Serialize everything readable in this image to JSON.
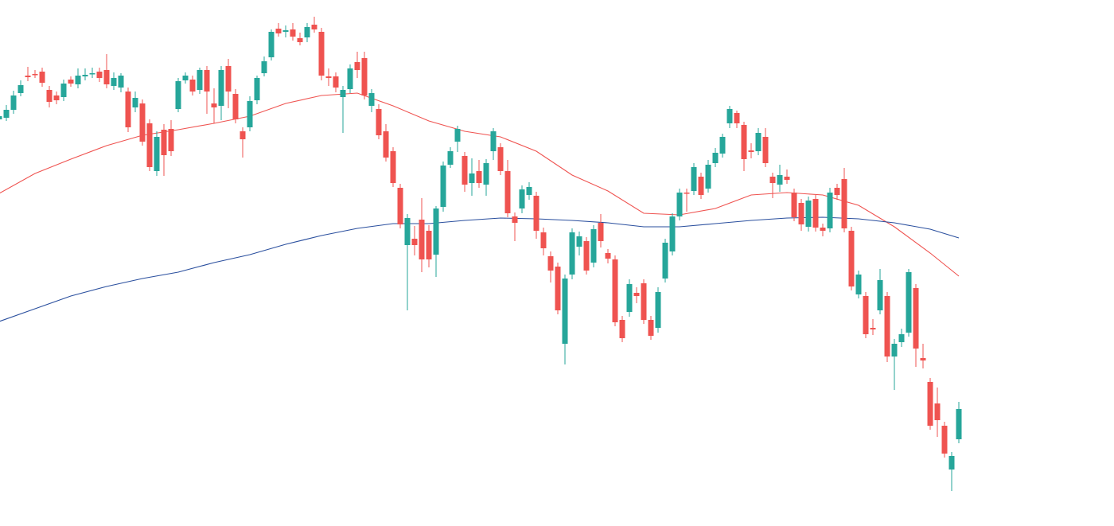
{
  "chart_data": {
    "type": "candlestick",
    "ylim": [
      0,
      661
    ],
    "up_color": "#26a69a",
    "down_color": "#ef5350",
    "candles": [
      [
        511,
        521,
        506,
        515
      ],
      [
        513,
        529,
        509,
        523
      ],
      [
        523,
        547,
        518,
        541
      ],
      [
        544,
        560,
        540,
        554
      ],
      [
        566,
        577,
        559,
        564
      ],
      [
        568,
        573,
        563,
        567
      ],
      [
        571,
        576,
        552,
        557
      ],
      [
        548,
        553,
        526,
        533
      ],
      [
        541,
        546,
        530,
        535
      ],
      [
        539,
        561,
        534,
        556
      ],
      [
        561,
        565,
        552,
        556
      ],
      [
        555,
        575,
        550,
        566
      ],
      [
        565,
        575,
        560,
        567
      ],
      [
        568,
        576,
        563,
        569
      ],
      [
        571,
        576,
        558,
        563
      ],
      [
        573,
        593,
        550,
        555
      ],
      [
        553,
        570,
        548,
        563
      ],
      [
        551,
        569,
        545,
        566
      ],
      [
        546,
        551,
        495,
        501
      ],
      [
        526,
        546,
        520,
        538
      ],
      [
        531,
        536,
        478,
        483
      ],
      [
        506,
        511,
        446,
        451
      ],
      [
        446,
        496,
        440,
        489
      ],
      [
        498,
        505,
        440,
        466
      ],
      [
        499,
        510,
        465,
        471
      ],
      [
        524,
        563,
        520,
        559
      ],
      [
        560,
        570,
        556,
        566
      ],
      [
        561,
        566,
        541,
        546
      ],
      [
        548,
        576,
        543,
        573
      ],
      [
        573,
        578,
        518,
        546
      ],
      [
        531,
        550,
        506,
        526
      ],
      [
        528,
        578,
        510,
        573
      ],
      [
        578,
        587,
        525,
        546
      ],
      [
        543,
        549,
        506,
        511
      ],
      [
        496,
        501,
        463,
        486
      ],
      [
        501,
        540,
        496,
        534
      ],
      [
        535,
        566,
        530,
        563
      ],
      [
        569,
        590,
        565,
        584
      ],
      [
        589,
        624,
        585,
        621
      ],
      [
        625,
        632,
        615,
        619
      ],
      [
        621,
        629,
        614,
        623
      ],
      [
        624,
        632,
        610,
        615
      ],
      [
        613,
        620,
        604,
        608
      ],
      [
        614,
        632,
        608,
        627
      ],
      [
        630,
        640,
        620,
        624
      ],
      [
        621,
        626,
        560,
        566
      ],
      [
        565,
        575,
        553,
        563
      ],
      [
        565,
        570,
        545,
        551
      ],
      [
        539,
        553,
        494,
        548
      ],
      [
        549,
        580,
        544,
        575
      ],
      [
        583,
        596,
        563,
        573
      ],
      [
        588,
        596,
        536,
        541
      ],
      [
        528,
        549,
        520,
        544
      ],
      [
        524,
        530,
        486,
        491
      ],
      [
        496,
        505,
        458,
        463
      ],
      [
        471,
        476,
        426,
        431
      ],
      [
        425,
        430,
        374,
        379
      ],
      [
        353,
        392,
        271,
        387
      ],
      [
        361,
        377,
        340,
        353
      ],
      [
        385,
        412,
        319,
        335
      ],
      [
        371,
        378,
        325,
        335
      ],
      [
        341,
        402,
        313,
        399
      ],
      [
        401,
        458,
        395,
        453
      ],
      [
        454,
        476,
        450,
        471
      ],
      [
        483,
        503,
        470,
        499
      ],
      [
        465,
        470,
        420,
        429
      ],
      [
        431,
        462,
        415,
        443
      ],
      [
        446,
        460,
        425,
        431
      ],
      [
        429,
        461,
        415,
        456
      ],
      [
        471,
        500,
        460,
        496
      ],
      [
        476,
        481,
        441,
        446
      ],
      [
        446,
        460,
        388,
        393
      ],
      [
        389,
        394,
        358,
        381
      ],
      [
        399,
        428,
        393,
        423
      ],
      [
        416,
        432,
        410,
        426
      ],
      [
        415,
        420,
        361,
        371
      ],
      [
        369,
        375,
        340,
        349
      ],
      [
        339,
        345,
        306,
        321
      ],
      [
        326,
        331,
        266,
        271
      ],
      [
        229,
        316,
        203,
        311
      ],
      [
        316,
        374,
        310,
        369
      ],
      [
        351,
        370,
        340,
        364
      ],
      [
        358,
        363,
        316,
        321
      ],
      [
        331,
        378,
        325,
        373
      ],
      [
        381,
        392,
        350,
        358
      ],
      [
        343,
        348,
        330,
        336
      ],
      [
        335,
        340,
        251,
        256
      ],
      [
        259,
        264,
        231,
        236
      ],
      [
        269,
        310,
        263,
        304
      ],
      [
        293,
        300,
        280,
        289
      ],
      [
        305,
        310,
        254,
        259
      ],
      [
        259,
        264,
        234,
        239
      ],
      [
        249,
        300,
        243,
        294
      ],
      [
        311,
        361,
        306,
        356
      ],
      [
        345,
        393,
        340,
        389
      ],
      [
        389,
        424,
        384,
        419
      ],
      [
        419,
        424,
        395,
        418
      ],
      [
        421,
        456,
        416,
        451
      ],
      [
        439,
        444,
        411,
        416
      ],
      [
        424,
        460,
        419,
        454
      ],
      [
        456,
        475,
        451,
        469
      ],
      [
        468,
        493,
        463,
        489
      ],
      [
        506,
        528,
        500,
        524
      ],
      [
        519,
        522,
        500,
        506
      ],
      [
        504,
        508,
        446,
        461
      ],
      [
        472,
        481,
        462,
        470
      ],
      [
        471,
        500,
        466,
        494
      ],
      [
        489,
        500,
        451,
        456
      ],
      [
        439,
        444,
        412,
        431
      ],
      [
        429,
        454,
        420,
        441
      ],
      [
        439,
        448,
        430,
        435
      ],
      [
        419,
        424,
        383,
        388
      ],
      [
        406,
        411,
        371,
        379
      ],
      [
        376,
        414,
        370,
        409
      ],
      [
        411,
        416,
        370,
        375
      ],
      [
        375,
        380,
        364,
        371
      ],
      [
        374,
        425,
        369,
        419
      ],
      [
        425,
        430,
        410,
        416
      ],
      [
        436,
        450,
        369,
        374
      ],
      [
        371,
        376,
        296,
        301
      ],
      [
        291,
        321,
        286,
        316
      ],
      [
        289,
        294,
        236,
        241
      ],
      [
        249,
        260,
        240,
        247
      ],
      [
        271,
        323,
        266,
        309
      ],
      [
        289,
        294,
        206,
        213
      ],
      [
        213,
        235,
        171,
        229
      ],
      [
        231,
        248,
        225,
        241
      ],
      [
        243,
        323,
        238,
        319
      ],
      [
        299,
        304,
        200,
        223
      ],
      [
        211,
        229,
        198,
        208
      ],
      [
        181,
        186,
        121,
        126
      ],
      [
        154,
        174,
        112,
        133
      ],
      [
        126,
        131,
        86,
        91
      ],
      [
        71,
        93,
        44,
        88
      ],
      [
        109,
        156,
        104,
        147
      ]
    ],
    "overlays": [
      {
        "color": "#ef5350",
        "x": [
          0,
          5,
          10,
          15,
          20,
          25,
          30,
          35,
          40,
          45,
          50,
          55,
          60,
          65,
          70,
          75,
          80,
          85,
          90,
          95,
          100,
          105,
          110,
          115,
          120,
          125,
          130,
          134
        ],
        "values": [
          418,
          443,
          461,
          478,
          491,
          498,
          506,
          515,
          531,
          541,
          544,
          528,
          509,
          496,
          489,
          471,
          441,
          421,
          393,
          391,
          399,
          416,
          419,
          416,
          403,
          376,
          343,
          314
        ]
      },
      {
        "color": "#2a4f9e",
        "x": [
          0,
          5,
          10,
          15,
          20,
          25,
          30,
          35,
          40,
          45,
          50,
          55,
          60,
          65,
          70,
          75,
          80,
          85,
          90,
          95,
          100,
          105,
          110,
          115,
          120,
          125,
          130,
          134
        ],
        "values": [
          257,
          273,
          289,
          301,
          311,
          319,
          331,
          341,
          354,
          365,
          374,
          380,
          380,
          384,
          387,
          386,
          384,
          381,
          376,
          376,
          380,
          384,
          387,
          388,
          386,
          381,
          373,
          362
        ]
      }
    ]
  }
}
